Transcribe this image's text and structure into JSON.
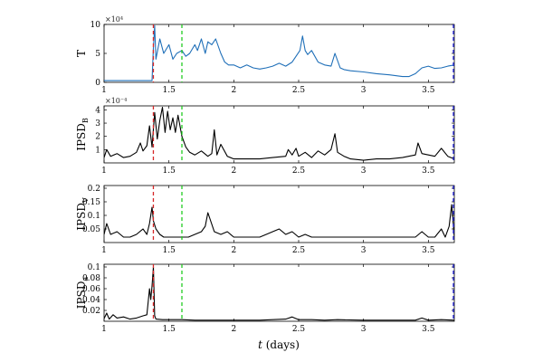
{
  "chart_data": [
    {
      "type": "line",
      "ylabel": "T",
      "ylabel_sub": "",
      "exponent_label": "×10⁴",
      "xlim": [
        1,
        3.7
      ],
      "ylim": [
        0,
        10
      ],
      "xticks": [
        1,
        1.5,
        2,
        2.5,
        3,
        3.5
      ],
      "xticklabels": [
        "1",
        "1.5",
        "2",
        "2.5",
        "3",
        "3.5"
      ],
      "yticks": [
        0,
        5,
        10
      ],
      "yticklabels": [
        "0",
        "5",
        "10"
      ],
      "series": [
        {
          "color": "#1f6fb8",
          "x": [
            1.0,
            1.1,
            1.2,
            1.3,
            1.37,
            1.38,
            1.39,
            1.4,
            1.43,
            1.46,
            1.5,
            1.53,
            1.56,
            1.6,
            1.63,
            1.66,
            1.7,
            1.72,
            1.75,
            1.78,
            1.8,
            1.83,
            1.86,
            1.9,
            1.93,
            1.96,
            2.0,
            2.05,
            2.1,
            2.15,
            2.2,
            2.25,
            2.3,
            2.35,
            2.4,
            2.45,
            2.48,
            2.51,
            2.53,
            2.55,
            2.57,
            2.6,
            2.65,
            2.7,
            2.75,
            2.78,
            2.82,
            2.85,
            2.9,
            3.0,
            3.1,
            3.2,
            3.3,
            3.35,
            3.4,
            3.45,
            3.5,
            3.55,
            3.6,
            3.65,
            3.7
          ],
          "y": [
            0.3,
            0.3,
            0.3,
            0.3,
            0.3,
            6.0,
            9.8,
            4.0,
            7.5,
            5.0,
            6.5,
            4.0,
            5.0,
            5.5,
            4.5,
            5.0,
            6.5,
            5.5,
            7.5,
            5.0,
            7.0,
            6.5,
            7.5,
            5.0,
            3.5,
            3.0,
            3.0,
            2.5,
            3.0,
            2.5,
            2.3,
            2.5,
            2.8,
            3.3,
            2.8,
            3.5,
            4.5,
            5.5,
            8.0,
            5.5,
            4.8,
            5.5,
            3.5,
            3.0,
            2.8,
            5.0,
            2.5,
            2.2,
            2.0,
            1.8,
            1.5,
            1.3,
            1.0,
            1.0,
            1.5,
            2.5,
            2.8,
            2.4,
            2.5,
            2.8,
            3.0
          ]
        }
      ],
      "vlines": [
        {
          "x": 1.38,
          "color": "#d62728"
        },
        {
          "x": 1.6,
          "color": "#22cc22"
        },
        {
          "x": 3.7,
          "color": "#1f1fd6"
        }
      ]
    },
    {
      "type": "line",
      "ylabel": "IPSD",
      "ylabel_sub": "B",
      "exponent_label": "×10⁻⁴",
      "xlim": [
        1,
        3.7
      ],
      "ylim": [
        0,
        4.3
      ],
      "xticks": [
        1,
        1.5,
        2,
        2.5,
        3,
        3.5
      ],
      "xticklabels": [
        "1",
        "1.5",
        "2",
        "2.5",
        "3",
        "3.5"
      ],
      "yticks": [
        1,
        2,
        3,
        4
      ],
      "yticklabels": [
        "1",
        "2",
        "3",
        "4"
      ],
      "series": [
        {
          "color": "#000000",
          "x": [
            1.0,
            1.02,
            1.05,
            1.1,
            1.15,
            1.2,
            1.25,
            1.28,
            1.3,
            1.33,
            1.35,
            1.37,
            1.39,
            1.41,
            1.43,
            1.45,
            1.47,
            1.49,
            1.51,
            1.53,
            1.55,
            1.57,
            1.6,
            1.63,
            1.66,
            1.7,
            1.75,
            1.8,
            1.83,
            1.85,
            1.87,
            1.9,
            1.95,
            2.0,
            2.1,
            2.2,
            2.3,
            2.4,
            2.42,
            2.45,
            2.48,
            2.5,
            2.55,
            2.6,
            2.65,
            2.7,
            2.75,
            2.78,
            2.8,
            2.85,
            2.9,
            3.0,
            3.1,
            3.2,
            3.3,
            3.4,
            3.42,
            3.45,
            3.5,
            3.55,
            3.6,
            3.65,
            3.7
          ],
          "y": [
            0.4,
            1.0,
            0.5,
            0.7,
            0.4,
            0.5,
            0.8,
            1.5,
            0.9,
            1.3,
            2.8,
            1.2,
            3.8,
            1.8,
            3.2,
            4.2,
            2.3,
            3.9,
            2.5,
            3.4,
            2.3,
            3.6,
            2.0,
            1.2,
            0.8,
            0.6,
            0.9,
            0.5,
            0.7,
            2.5,
            0.6,
            1.4,
            0.5,
            0.3,
            0.3,
            0.3,
            0.4,
            0.5,
            1.0,
            0.6,
            1.1,
            0.5,
            0.8,
            0.4,
            0.9,
            0.6,
            1.0,
            2.2,
            0.8,
            0.5,
            0.3,
            0.2,
            0.3,
            0.3,
            0.4,
            0.6,
            1.5,
            0.7,
            0.6,
            0.5,
            1.1,
            0.5,
            0.3
          ]
        }
      ],
      "vlines": [
        {
          "x": 1.38,
          "color": "#d62728"
        },
        {
          "x": 1.6,
          "color": "#22cc22"
        },
        {
          "x": 3.7,
          "color": "#1f1fd6"
        }
      ]
    },
    {
      "type": "line",
      "ylabel": "IPSD",
      "ylabel_sub": "V",
      "exponent_label": "",
      "xlim": [
        1,
        3.7
      ],
      "ylim": [
        0,
        0.21
      ],
      "xticks": [
        1,
        1.5,
        2,
        2.5,
        3,
        3.5
      ],
      "xticklabels": [
        "1",
        "1.5",
        "2",
        "2.5",
        "3",
        "3.5"
      ],
      "yticks": [
        0.05,
        0.1,
        0.15,
        0.2
      ],
      "yticklabels": [
        "0.05",
        "0.1",
        "0.15",
        "0.2"
      ],
      "series": [
        {
          "color": "#000000",
          "x": [
            1.0,
            1.02,
            1.05,
            1.1,
            1.15,
            1.2,
            1.25,
            1.3,
            1.33,
            1.35,
            1.37,
            1.38,
            1.4,
            1.43,
            1.46,
            1.5,
            1.55,
            1.6,
            1.65,
            1.7,
            1.75,
            1.78,
            1.8,
            1.85,
            1.9,
            1.95,
            2.0,
            2.1,
            2.2,
            2.25,
            2.3,
            2.35,
            2.4,
            2.45,
            2.5,
            2.55,
            2.6,
            2.7,
            2.8,
            2.9,
            3.0,
            3.1,
            3.2,
            3.3,
            3.4,
            3.45,
            3.5,
            3.55,
            3.6,
            3.63,
            3.66,
            3.68,
            3.7
          ],
          "y": [
            0.03,
            0.07,
            0.03,
            0.04,
            0.02,
            0.02,
            0.03,
            0.05,
            0.03,
            0.07,
            0.13,
            0.08,
            0.05,
            0.03,
            0.02,
            0.02,
            0.02,
            0.02,
            0.02,
            0.03,
            0.04,
            0.06,
            0.11,
            0.04,
            0.03,
            0.04,
            0.02,
            0.02,
            0.02,
            0.03,
            0.04,
            0.05,
            0.03,
            0.04,
            0.02,
            0.03,
            0.02,
            0.02,
            0.02,
            0.02,
            0.02,
            0.02,
            0.02,
            0.02,
            0.02,
            0.04,
            0.02,
            0.02,
            0.05,
            0.02,
            0.06,
            0.14,
            0.02
          ]
        }
      ],
      "vlines": [
        {
          "x": 1.38,
          "color": "#d62728"
        },
        {
          "x": 1.6,
          "color": "#22cc22"
        },
        {
          "x": 3.7,
          "color": "#1f1fd6"
        }
      ]
    },
    {
      "type": "line",
      "ylabel": "IPSD",
      "ylabel_sub": "a",
      "exponent_label": "",
      "xlim": [
        1,
        3.7
      ],
      "ylim": [
        0,
        0.105
      ],
      "xticks": [
        1,
        1.5,
        2,
        2.5,
        3,
        3.5
      ],
      "xticklabels": [
        "1",
        "1.5",
        "2",
        "2.5",
        "3",
        "3.5"
      ],
      "yticks": [
        0.02,
        0.04,
        0.06,
        0.08,
        0.1
      ],
      "yticklabels": [
        "0.02",
        "0.04",
        "0.06",
        "0.08",
        "0.1"
      ],
      "series": [
        {
          "color": "#000000",
          "x": [
            1.0,
            1.02,
            1.04,
            1.07,
            1.1,
            1.15,
            1.2,
            1.25,
            1.3,
            1.33,
            1.35,
            1.36,
            1.37,
            1.38,
            1.39,
            1.4,
            1.45,
            1.5,
            1.6,
            1.7,
            1.8,
            1.9,
            2.0,
            2.2,
            2.4,
            2.45,
            2.5,
            2.6,
            2.7,
            2.8,
            3.0,
            3.2,
            3.4,
            3.45,
            3.5,
            3.6,
            3.7
          ],
          "y": [
            0.005,
            0.015,
            0.004,
            0.012,
            0.006,
            0.008,
            0.004,
            0.006,
            0.01,
            0.012,
            0.06,
            0.04,
            0.065,
            0.1,
            0.01,
            0.004,
            0.003,
            0.003,
            0.003,
            0.002,
            0.002,
            0.002,
            0.002,
            0.002,
            0.004,
            0.008,
            0.003,
            0.003,
            0.002,
            0.003,
            0.002,
            0.002,
            0.002,
            0.006,
            0.002,
            0.003,
            0.002
          ]
        }
      ],
      "vlines": [
        {
          "x": 1.38,
          "color": "#d62728"
        },
        {
          "x": 1.6,
          "color": "#22cc22"
        },
        {
          "x": 3.7,
          "color": "#1f1fd6"
        }
      ]
    }
  ],
  "xlabel_italic": "t",
  "xlabel_unit": "(days)"
}
